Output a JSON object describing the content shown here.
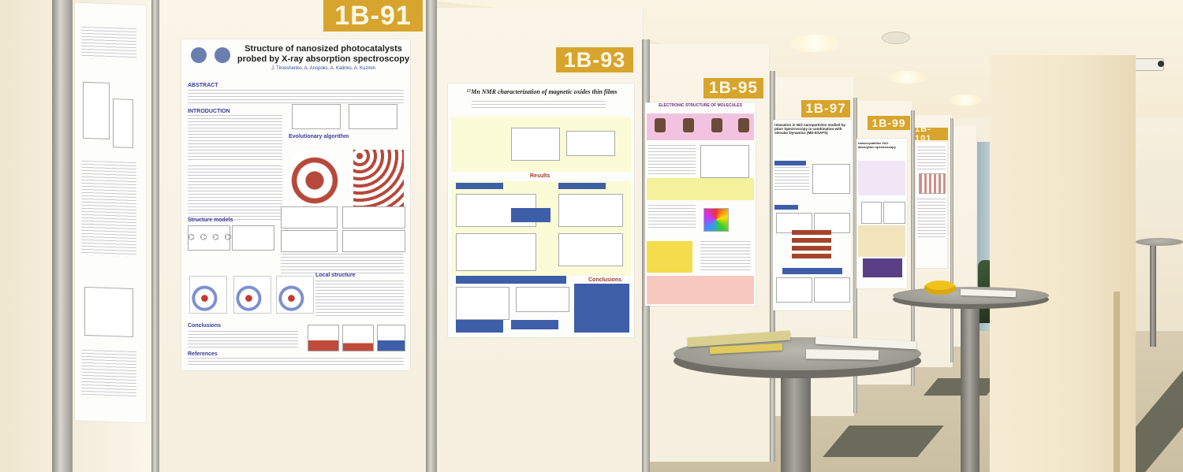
{
  "scene": {
    "board_numbers": [
      "1B-91",
      "1B-93",
      "1B-95",
      "1B-97",
      "1B-99",
      "1B-101"
    ]
  },
  "posters": {
    "p91": {
      "title_line1": "Structure of nanosized photocatalysts",
      "title_line2": "probed by X-ray absorption spectroscopy",
      "authors": "J. Timoshenko, A. Anspoks, A. Kalinko, A. Kuzmin",
      "headings": [
        "ABSTRACT",
        "INTRODUCTION",
        "Evolutionary algorithm",
        "Structure models",
        "Local structure",
        "Conclusions",
        "References"
      ]
    },
    "p93": {
      "title": "⁵⁷Mn NMR characterization of magnetic oxides thin films",
      "headings": [
        "Results",
        "Conclusions"
      ]
    },
    "p95": {
      "title": "ELECTRONIC STRUCTURE OF MOLECULES"
    },
    "p97": {
      "title_line1": "relaxation in NiO nanoparticles studied by",
      "title_line2": "ption Spectroscopy in combination with",
      "title_line3": "olecular Dynamics (MD-EXAFS)",
      "headings": [
        "Introduction",
        "Results",
        "Results from MD-EXAFS modelling"
      ]
    },
    "p99": {
      "title_line1": "nanocrystalline ZnO",
      "title_line2": "absorption spectroscopy"
    }
  }
}
